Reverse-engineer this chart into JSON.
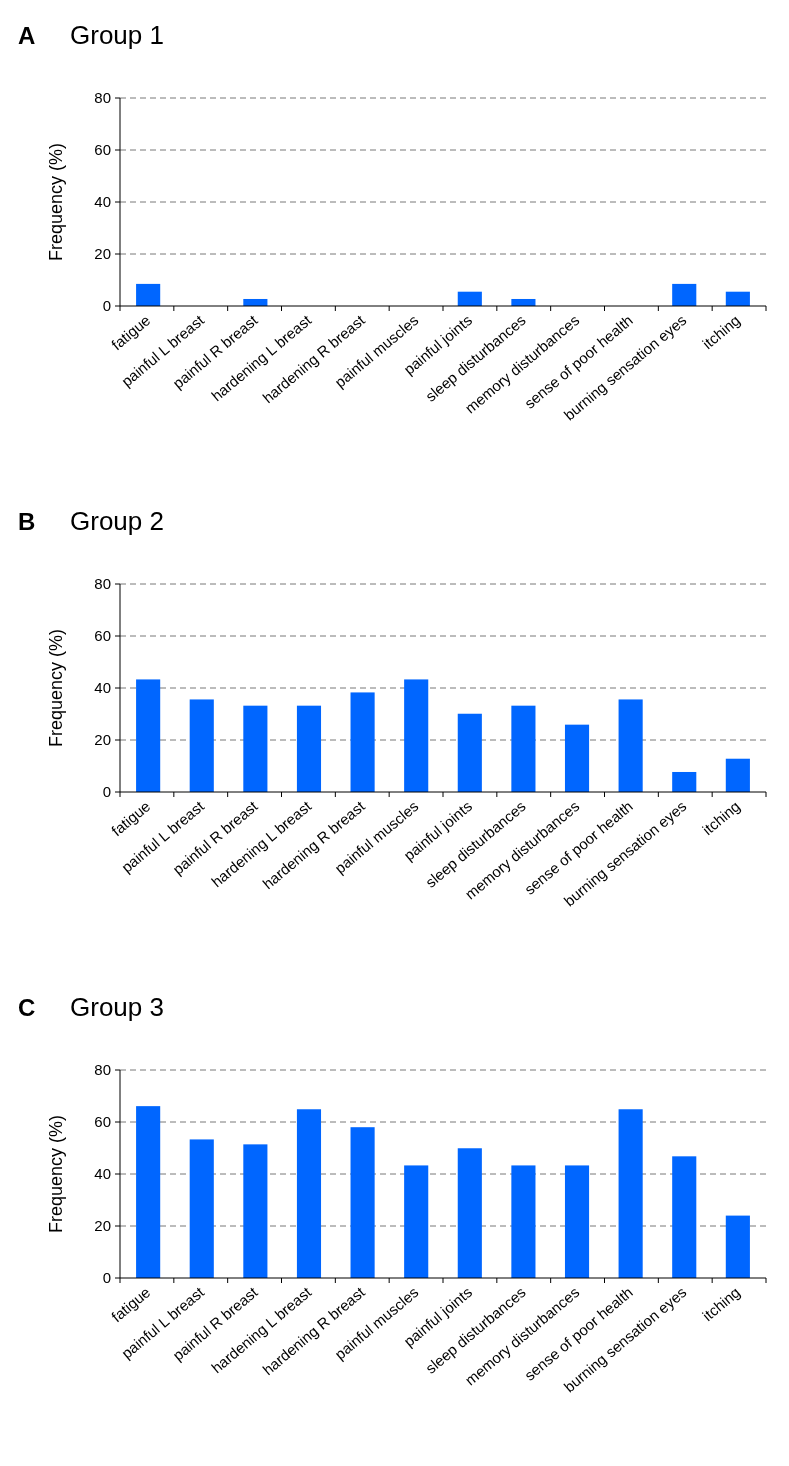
{
  "chart_data": [
    {
      "type": "bar",
      "title": "Group 1",
      "annotations": [
        "A"
      ],
      "ylabel": "Frequency (%)",
      "categories": [
        "fatigue",
        "painful L breast",
        "painful R breast",
        "hardening L breast",
        "hardening R breast",
        "painful muscles",
        "painful joints",
        "sleep disturbances",
        "memory disturbances",
        "sense of poor health",
        "burning sensation eyes",
        "itching"
      ],
      "values": [
        8.5,
        0,
        2.7,
        0,
        0,
        0,
        5.5,
        2.7,
        0,
        0,
        8.5,
        5.5
      ],
      "color": "#0066ff",
      "ylim": [
        0,
        80
      ],
      "yticks": [
        0,
        20,
        40,
        60,
        80
      ],
      "grid": "y"
    },
    {
      "type": "bar",
      "title": "Group 2",
      "annotations": [
        "B"
      ],
      "ylabel": "Frequency (%)",
      "categories": [
        "fatigue",
        "painful L breast",
        "painful R breast",
        "hardening L breast",
        "hardening R breast",
        "painful muscles",
        "painful joints",
        "sleep disturbances",
        "memory disturbances",
        "sense of poor health",
        "burning sensation eyes",
        "itching"
      ],
      "values": [
        43.3,
        35.6,
        33.2,
        33.2,
        38.3,
        43.3,
        30.1,
        33.2,
        25.9,
        35.6,
        7.7,
        12.8
      ],
      "color": "#0066ff",
      "ylim": [
        0,
        80
      ],
      "yticks": [
        0,
        20,
        40,
        60,
        80
      ],
      "grid": "y"
    },
    {
      "type": "bar",
      "title": "Group 3",
      "annotations": [
        "C"
      ],
      "ylabel": "Frequency (%)",
      "categories": [
        "fatigue",
        "painful L breast",
        "painful R breast",
        "hardening L breast",
        "hardening R breast",
        "painful muscles",
        "painful joints",
        "sleep disturbances",
        "memory disturbances",
        "sense of poor health",
        "burning sensation eyes",
        "itching"
      ],
      "values": [
        66.1,
        53.3,
        51.4,
        64.9,
        58,
        43.3,
        49.9,
        43.3,
        43.3,
        64.9,
        46.8,
        24
      ],
      "color": "#0066ff",
      "ylim": [
        0,
        80
      ],
      "yticks": [
        0,
        20,
        40,
        60,
        80
      ],
      "grid": "y"
    }
  ]
}
